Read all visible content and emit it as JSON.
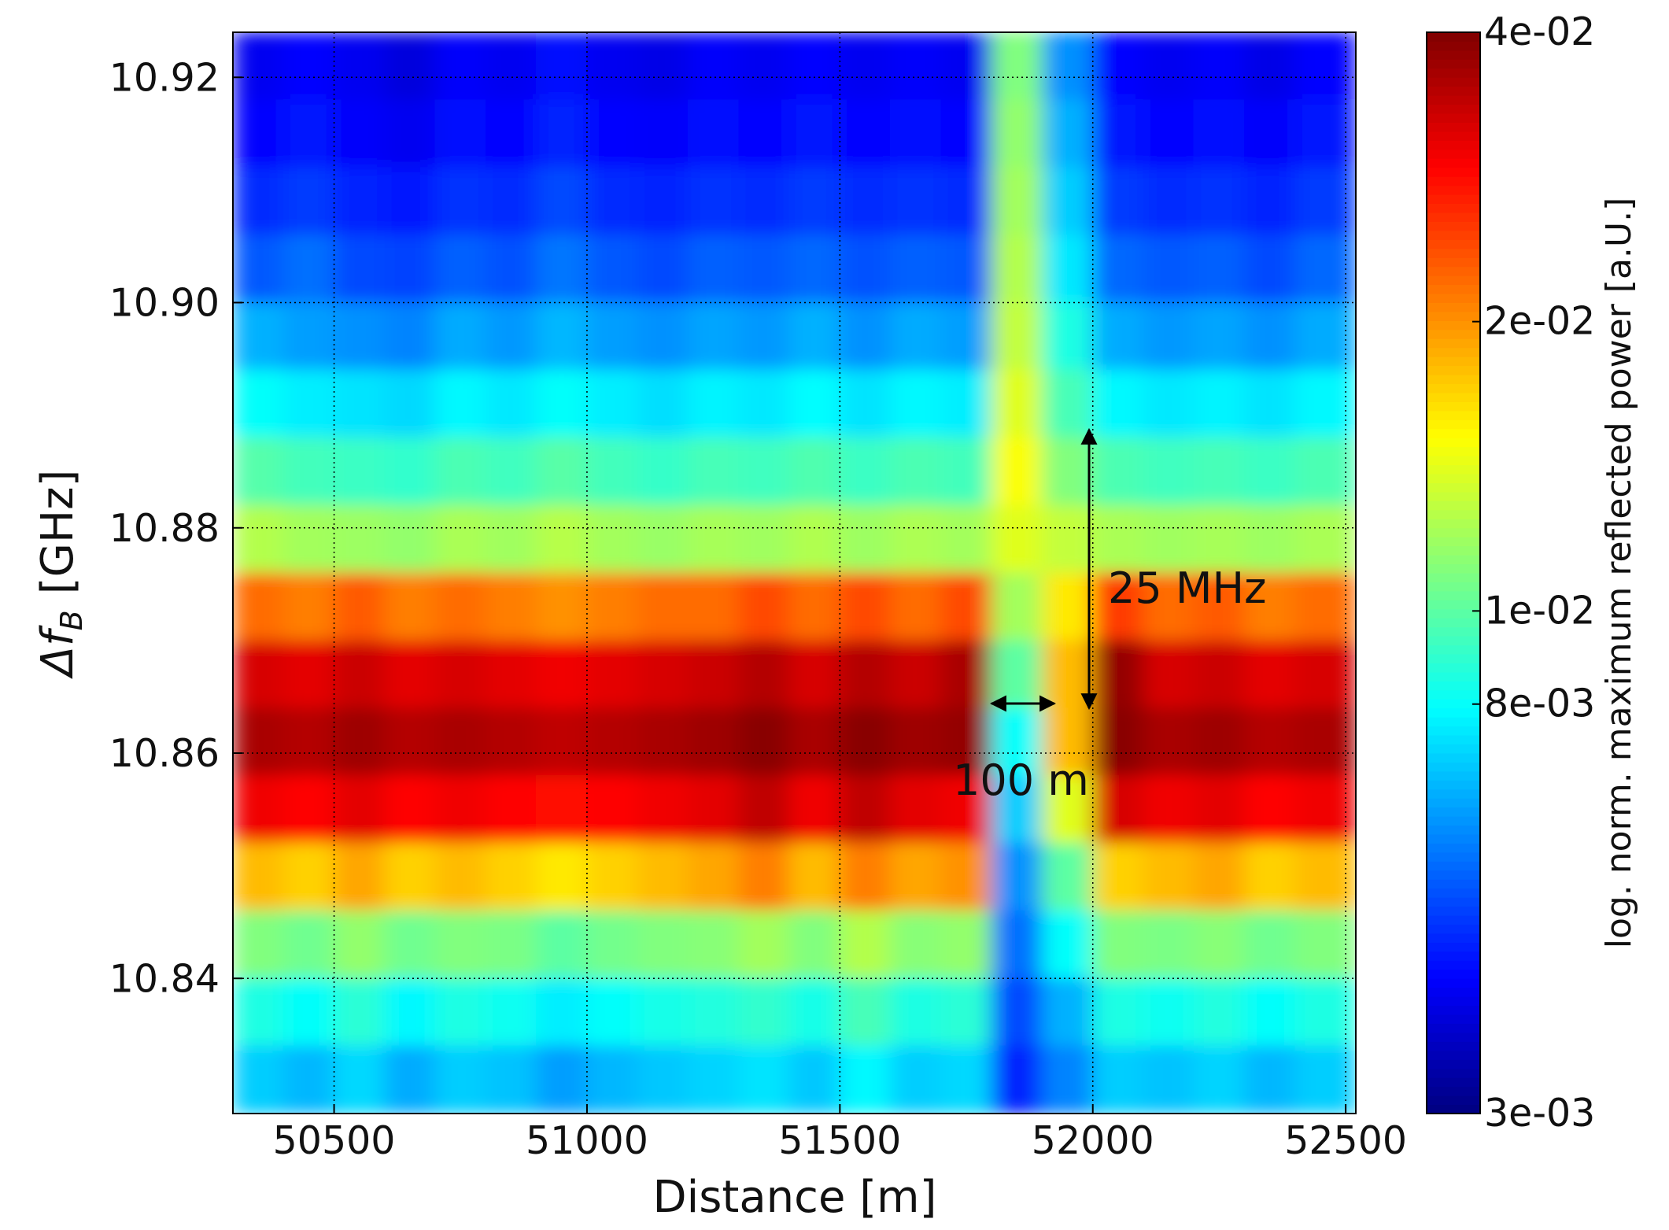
{
  "chart_data": {
    "type": "heatmap",
    "xlabel": "Distance [m]",
    "ylabel": "Δf",
    "ylabel_sub": "B",
    "ylabel_unit": "[GHz]",
    "colorbar_label": "log. norm. maximum reflected power [a.U.]",
    "colormap": "jet",
    "colorbar_log": true,
    "grid": true,
    "xlim": [
      50300,
      52520
    ],
    "ylim": [
      10.828,
      10.924
    ],
    "clim": [
      0.003,
      0.04
    ],
    "xticks": [
      50500,
      51000,
      51500,
      52000,
      52500
    ],
    "yticks": [
      {
        "value": 10.84,
        "label": "10.84"
      },
      {
        "value": 10.86,
        "label": "10.86"
      },
      {
        "value": 10.88,
        "label": "10.88"
      },
      {
        "value": 10.9,
        "label": "10.90"
      },
      {
        "value": 10.92,
        "label": "10.92"
      }
    ],
    "cticks": [
      {
        "value": 0.003,
        "label": "3e-03"
      },
      {
        "value": 0.008,
        "label": "8e-03"
      },
      {
        "value": 0.01,
        "label": "1e-02"
      },
      {
        "value": 0.02,
        "label": "2e-02"
      },
      {
        "value": 0.04,
        "label": "4e-02"
      }
    ],
    "annotations": [
      "25 MHz",
      "100 m"
    ],
    "x": [
      50350,
      50450,
      50550,
      50650,
      50750,
      50850,
      50950,
      51050,
      51150,
      51250,
      51350,
      51450,
      51550,
      51650,
      51750,
      51850,
      51950,
      52050,
      52150,
      52250,
      52350,
      52450
    ],
    "y": [
      10.921,
      10.915,
      10.909,
      10.903,
      10.897,
      10.891,
      10.885,
      10.879,
      10.873,
      10.867,
      10.861,
      10.855,
      10.849,
      10.843,
      10.837,
      10.831
    ],
    "z": [
      [
        0.004,
        0.0042,
        0.004,
        0.0038,
        0.0041,
        0.004,
        0.0043,
        0.004,
        0.0039,
        0.0041,
        0.004,
        0.0042,
        0.004,
        0.0041,
        0.004,
        0.011,
        0.006,
        0.0042,
        0.004,
        0.0041,
        0.0039,
        0.0042
      ],
      [
        0.0042,
        0.0044,
        0.0041,
        0.004,
        0.0043,
        0.0042,
        0.0045,
        0.0042,
        0.0041,
        0.0043,
        0.0042,
        0.0044,
        0.0042,
        0.0043,
        0.0042,
        0.0115,
        0.0065,
        0.0044,
        0.0042,
        0.0043,
        0.0041,
        0.0044
      ],
      [
        0.0046,
        0.0048,
        0.0045,
        0.0044,
        0.0047,
        0.0046,
        0.005,
        0.0046,
        0.0045,
        0.0047,
        0.0046,
        0.0048,
        0.0046,
        0.0047,
        0.0046,
        0.012,
        0.007,
        0.0048,
        0.0046,
        0.0047,
        0.0045,
        0.0048
      ],
      [
        0.0052,
        0.0055,
        0.005,
        0.0049,
        0.0053,
        0.0051,
        0.0056,
        0.0052,
        0.005,
        0.0053,
        0.0052,
        0.0054,
        0.0051,
        0.0053,
        0.0052,
        0.0125,
        0.0075,
        0.0054,
        0.0052,
        0.0053,
        0.005,
        0.0054
      ],
      [
        0.0065,
        0.0062,
        0.006,
        0.0058,
        0.0064,
        0.0061,
        0.0066,
        0.0062,
        0.006,
        0.0063,
        0.0061,
        0.0065,
        0.006,
        0.0064,
        0.0062,
        0.013,
        0.0085,
        0.0064,
        0.0061,
        0.0063,
        0.006,
        0.0064
      ],
      [
        0.008,
        0.0076,
        0.0074,
        0.0072,
        0.0078,
        0.0075,
        0.008,
        0.0076,
        0.0073,
        0.0077,
        0.0075,
        0.0079,
        0.0074,
        0.0078,
        0.0076,
        0.014,
        0.0095,
        0.0078,
        0.0075,
        0.0077,
        0.0074,
        0.0078
      ],
      [
        0.0098,
        0.0094,
        0.0092,
        0.009,
        0.0096,
        0.0093,
        0.0099,
        0.0094,
        0.0091,
        0.0095,
        0.0093,
        0.0097,
        0.0092,
        0.0096,
        0.0094,
        0.015,
        0.011,
        0.0096,
        0.0093,
        0.0095,
        0.0092,
        0.0096
      ],
      [
        0.0125,
        0.012,
        0.0118,
        0.0115,
        0.0122,
        0.0119,
        0.0126,
        0.012,
        0.0117,
        0.0121,
        0.0119,
        0.0124,
        0.0118,
        0.0123,
        0.012,
        0.014,
        0.013,
        0.0122,
        0.0119,
        0.0121,
        0.0118,
        0.0122
      ],
      [
        0.022,
        0.021,
        0.023,
        0.021,
        0.022,
        0.021,
        0.02,
        0.021,
        0.022,
        0.022,
        0.024,
        0.022,
        0.024,
        0.022,
        0.024,
        0.012,
        0.016,
        0.025,
        0.022,
        0.023,
        0.021,
        0.022
      ],
      [
        0.032,
        0.031,
        0.033,
        0.031,
        0.032,
        0.031,
        0.03,
        0.031,
        0.032,
        0.033,
        0.035,
        0.032,
        0.035,
        0.033,
        0.036,
        0.01,
        0.018,
        0.038,
        0.032,
        0.033,
        0.031,
        0.032
      ],
      [
        0.036,
        0.035,
        0.037,
        0.035,
        0.036,
        0.035,
        0.034,
        0.035,
        0.036,
        0.037,
        0.039,
        0.036,
        0.039,
        0.037,
        0.038,
        0.008,
        0.018,
        0.039,
        0.036,
        0.037,
        0.035,
        0.036
      ],
      [
        0.03,
        0.029,
        0.031,
        0.029,
        0.03,
        0.029,
        0.028,
        0.029,
        0.03,
        0.031,
        0.034,
        0.03,
        0.034,
        0.031,
        0.03,
        0.007,
        0.014,
        0.032,
        0.03,
        0.031,
        0.029,
        0.03
      ],
      [
        0.018,
        0.017,
        0.019,
        0.017,
        0.018,
        0.017,
        0.016,
        0.017,
        0.018,
        0.019,
        0.021,
        0.018,
        0.021,
        0.019,
        0.02,
        0.006,
        0.01,
        0.017,
        0.018,
        0.019,
        0.017,
        0.018
      ],
      [
        0.011,
        0.0105,
        0.0115,
        0.0105,
        0.011,
        0.0108,
        0.01,
        0.0106,
        0.011,
        0.0112,
        0.012,
        0.011,
        0.0125,
        0.0112,
        0.0115,
        0.0055,
        0.008,
        0.011,
        0.0108,
        0.0112,
        0.0105,
        0.011
      ],
      [
        0.0085,
        0.008,
        0.0088,
        0.0078,
        0.0085,
        0.0082,
        0.0076,
        0.008,
        0.0084,
        0.0086,
        0.009,
        0.0084,
        0.0095,
        0.0085,
        0.0088,
        0.005,
        0.0065,
        0.0085,
        0.0082,
        0.0086,
        0.008,
        0.0085
      ],
      [
        0.007,
        0.0066,
        0.0072,
        0.0064,
        0.007,
        0.0068,
        0.0062,
        0.0066,
        0.0069,
        0.0071,
        0.0074,
        0.0069,
        0.0078,
        0.007,
        0.0072,
        0.0045,
        0.0058,
        0.007,
        0.0068,
        0.0071,
        0.0066,
        0.007
      ]
    ]
  }
}
